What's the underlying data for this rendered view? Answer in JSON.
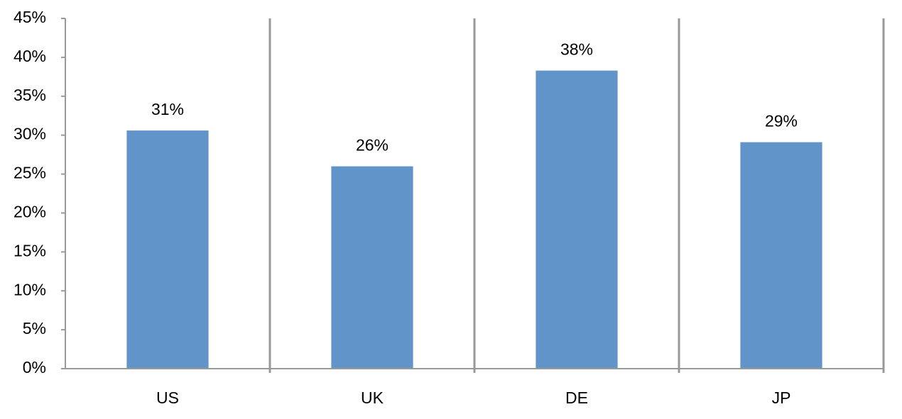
{
  "chart_data": {
    "type": "bar",
    "categories": [
      "US",
      "UK",
      "DE",
      "JP"
    ],
    "values": [
      30.6,
      26.0,
      38.3,
      29.1
    ],
    "value_labels": [
      "31%",
      "26%",
      "38%",
      "29%"
    ],
    "color": "#6195c9",
    "ylim": [
      0,
      45
    ],
    "yticks": [
      {
        "value": 0,
        "label": "0%"
      },
      {
        "value": 5,
        "label": "5%"
      },
      {
        "value": 10,
        "label": "10%"
      },
      {
        "value": 15,
        "label": "15%"
      },
      {
        "value": 20,
        "label": "20%"
      },
      {
        "value": 25,
        "label": "25%"
      },
      {
        "value": 30,
        "label": "30%"
      },
      {
        "value": 35,
        "label": "35%"
      },
      {
        "value": 40,
        "label": "40%"
      },
      {
        "value": 45,
        "label": "45%"
      }
    ]
  }
}
